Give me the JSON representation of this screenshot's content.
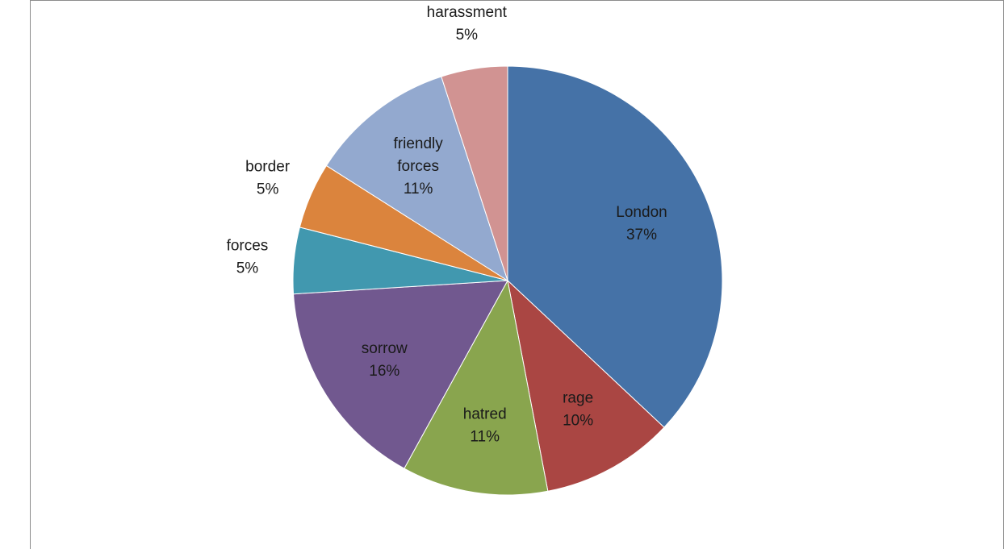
{
  "chart_data": {
    "type": "pie",
    "title": "",
    "slices": [
      {
        "label": "London",
        "percent_label": "37%",
        "value": 37,
        "color": "#4572A7",
        "label_pos": "inside"
      },
      {
        "label": "rage",
        "percent_label": "10%",
        "value": 10,
        "color": "#AA4643",
        "label_pos": "inside"
      },
      {
        "label": "hatred",
        "percent_label": "11%",
        "value": 11,
        "color": "#89A54E",
        "label_pos": "inside"
      },
      {
        "label": "sorrow",
        "percent_label": "16%",
        "value": 16,
        "color": "#71588F",
        "label_pos": "inside"
      },
      {
        "label": "forces",
        "percent_label": "5%",
        "value": 5,
        "color": "#4198AF",
        "label_pos": "outside"
      },
      {
        "label": "border",
        "percent_label": "5%",
        "value": 5,
        "color": "#DB843D",
        "label_pos": "outside"
      },
      {
        "label": "friendly forces",
        "label_lines": [
          "friendly",
          "forces"
        ],
        "percent_label": "11%",
        "value": 11,
        "color": "#93A9CF",
        "label_pos": "inside"
      },
      {
        "label": "harassment",
        "percent_label": "5%",
        "value": 5,
        "color": "#D19392",
        "label_pos": "outside"
      }
    ],
    "start_angle_deg": 0,
    "direction": "clockwise",
    "legend": "none"
  }
}
